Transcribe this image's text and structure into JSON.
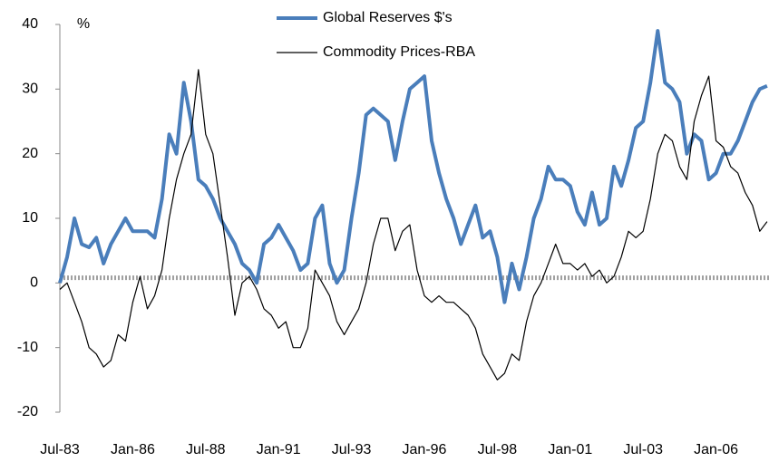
{
  "chart_data": {
    "type": "line",
    "ylabel": "%",
    "categories": [
      "Jul-83",
      null,
      null,
      null,
      null,
      null,
      null,
      null,
      null,
      null,
      "Jan-86",
      null,
      null,
      null,
      null,
      null,
      null,
      null,
      null,
      null,
      "Jul-88",
      null,
      null,
      null,
      null,
      null,
      null,
      null,
      null,
      null,
      "Jan-91",
      null,
      null,
      null,
      null,
      null,
      null,
      null,
      null,
      null,
      "Jul-93",
      null,
      null,
      null,
      null,
      null,
      null,
      null,
      null,
      null,
      "Jan-96",
      null,
      null,
      null,
      null,
      null,
      null,
      null,
      null,
      null,
      "Jul-98",
      null,
      null,
      null,
      null,
      null,
      null,
      null,
      null,
      null,
      "Jan-01",
      null,
      null,
      null,
      null,
      null,
      null,
      null,
      null,
      null,
      "Jul-03",
      null,
      null,
      null,
      null,
      null,
      null,
      null,
      null,
      null,
      "Jan-06",
      null,
      null,
      null,
      null,
      null,
      null,
      null
    ],
    "series": [
      {
        "name": "Global Reserves $'s",
        "color": "#4a7ebb",
        "width": 4,
        "values": [
          0,
          4,
          10,
          6,
          5.5,
          7,
          3,
          6,
          8,
          10,
          8,
          8,
          8,
          7,
          13,
          23,
          20,
          31,
          25,
          16,
          15,
          13,
          10,
          8,
          6,
          3,
          2,
          0,
          6,
          7,
          9,
          7,
          5,
          2,
          3,
          10,
          12,
          3,
          0,
          2,
          10,
          17,
          26,
          27,
          26,
          25,
          19,
          25,
          30,
          31,
          32,
          22,
          17,
          13,
          10,
          6,
          9,
          12,
          7,
          8,
          4,
          -3,
          3,
          -1,
          4,
          10,
          13,
          18,
          16,
          16,
          15,
          11,
          9,
          14,
          9,
          10,
          18,
          15,
          19,
          24,
          25,
          31,
          39,
          31,
          30,
          28,
          20,
          23,
          22,
          16,
          17,
          20,
          20,
          22,
          25,
          28,
          30,
          30.5
        ]
      },
      {
        "name": "Commodity Prices-RBA",
        "color": "#000000",
        "width": 1.2,
        "values": [
          -1,
          0,
          -3,
          -6,
          -10,
          -11,
          -13,
          -12,
          -8,
          -9,
          -3,
          1,
          -4,
          -2,
          2,
          10,
          16,
          20,
          23,
          33,
          23,
          20,
          12,
          4,
          -5,
          0,
          1,
          -1,
          -4,
          -5,
          -7,
          -6,
          -10,
          -10,
          -7,
          2,
          0,
          -2,
          -6,
          -8,
          -6,
          -4,
          0,
          6,
          10,
          10,
          5,
          8,
          9,
          2,
          -2,
          -3,
          -2,
          -3,
          -3,
          -4,
          -5,
          -7,
          -11,
          -13,
          -15,
          -14,
          -11,
          -12,
          -6,
          -2,
          0,
          3,
          6,
          3,
          3,
          2,
          3,
          1,
          2,
          0,
          1,
          4,
          8,
          7,
          8,
          13,
          20,
          23,
          22,
          18,
          16,
          25,
          29,
          32,
          22,
          21,
          18,
          17,
          14,
          12,
          8,
          9.5
        ]
      }
    ],
    "reference_line": {
      "value": 0.8,
      "color": "#a0a0a0"
    },
    "ylim": [
      -20,
      40
    ],
    "yticks": [
      -20,
      -10,
      0,
      10,
      20,
      30,
      40
    ],
    "legend": "top"
  }
}
